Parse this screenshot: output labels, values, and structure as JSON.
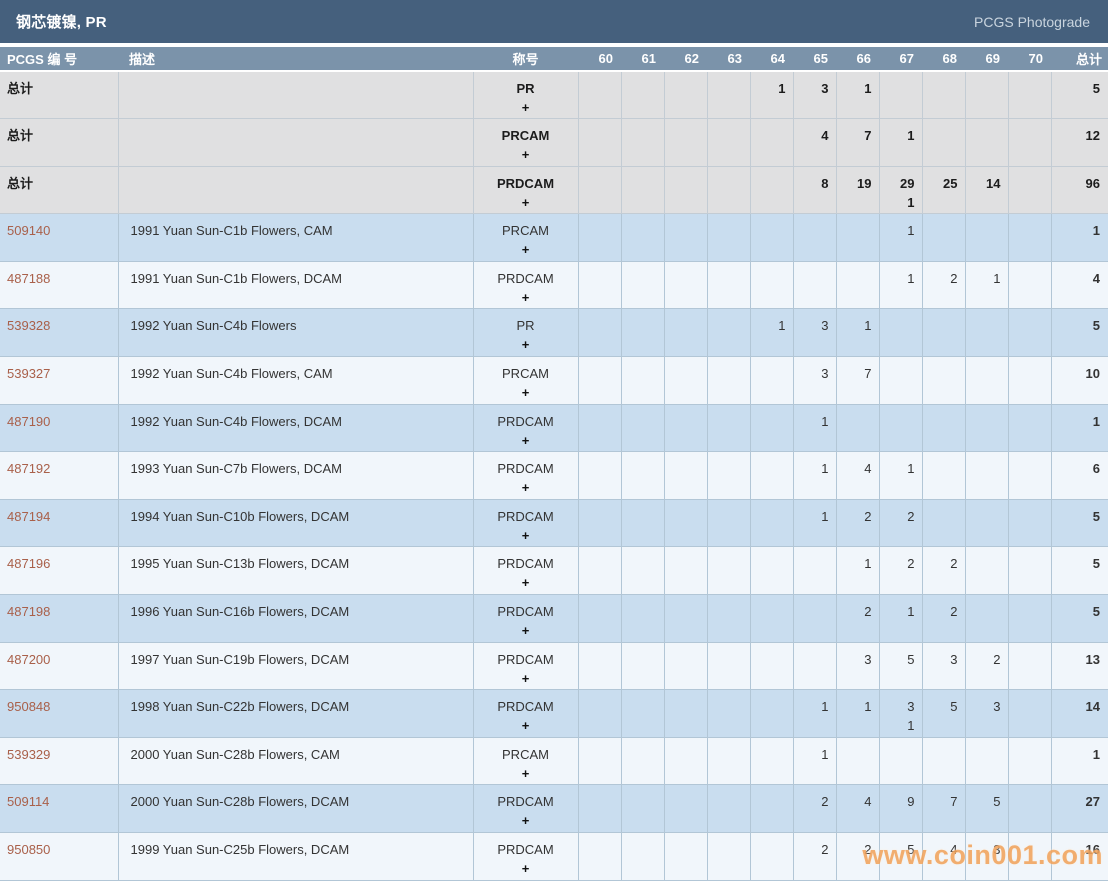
{
  "title": "钢芯镀镍, PR",
  "photograde_link": "PCGS Photograde",
  "watermark": "www.coin001.com",
  "colors": {
    "title_bar": "#45607d",
    "header_row": "#7b93aa",
    "total_row": "#e0e0e1",
    "row_blue": "#c9ddef",
    "row_white": "#f1f6fb",
    "pcgs_link": "#a9604a",
    "watermark": "#f2a35c"
  },
  "table": {
    "headers": {
      "pcgs_no": "PCGS 编 号",
      "description": "描述",
      "designation": "称号",
      "grades": [
        "60",
        "61",
        "62",
        "63",
        "64",
        "65",
        "66",
        "67",
        "68",
        "69",
        "70"
      ],
      "total": "总计"
    },
    "rows": [
      {
        "kind": "total",
        "label": "总计",
        "description": "",
        "designation": "PR",
        "plus": "+",
        "grades": [
          "",
          "",
          "",
          "",
          "1",
          "3",
          "1",
          "",
          "",
          "",
          ""
        ],
        "total": "5"
      },
      {
        "kind": "total",
        "label": "总计",
        "description": "",
        "designation": "PRCAM",
        "plus": "+",
        "grades": [
          "",
          "",
          "",
          "",
          "",
          "4",
          "7",
          "1",
          "",
          "",
          ""
        ],
        "total": "12"
      },
      {
        "kind": "total",
        "label": "总计",
        "description": "",
        "designation": "PRDCAM",
        "plus": "+",
        "grades": [
          "",
          "",
          "",
          "",
          "",
          "8",
          "19",
          [
            "29",
            "1"
          ],
          "25",
          "14",
          ""
        ],
        "total": "96"
      },
      {
        "kind": "data",
        "pcgs_no": "509140",
        "description": "1991 Yuan Sun-C1b Flowers, CAM",
        "designation": "PRCAM",
        "plus": "+",
        "grades": [
          "",
          "",
          "",
          "",
          "",
          "",
          "",
          "1",
          "",
          "",
          ""
        ],
        "total": "1"
      },
      {
        "kind": "data",
        "pcgs_no": "487188",
        "description": "1991 Yuan Sun-C1b Flowers, DCAM",
        "designation": "PRDCAM",
        "plus": "+",
        "grades": [
          "",
          "",
          "",
          "",
          "",
          "",
          "",
          "1",
          "2",
          "1",
          ""
        ],
        "total": "4"
      },
      {
        "kind": "data",
        "pcgs_no": "539328",
        "description": "1992 Yuan Sun-C4b Flowers",
        "designation": "PR",
        "plus": "+",
        "grades": [
          "",
          "",
          "",
          "",
          "1",
          "3",
          "1",
          "",
          "",
          "",
          ""
        ],
        "total": "5"
      },
      {
        "kind": "data",
        "pcgs_no": "539327",
        "description": "1992 Yuan Sun-C4b Flowers, CAM",
        "designation": "PRCAM",
        "plus": "+",
        "grades": [
          "",
          "",
          "",
          "",
          "",
          "3",
          "7",
          "",
          "",
          "",
          ""
        ],
        "total": "10"
      },
      {
        "kind": "data",
        "pcgs_no": "487190",
        "description": "1992 Yuan Sun-C4b Flowers, DCAM",
        "designation": "PRDCAM",
        "plus": "+",
        "grades": [
          "",
          "",
          "",
          "",
          "",
          "1",
          "",
          "",
          "",
          "",
          ""
        ],
        "total": "1"
      },
      {
        "kind": "data",
        "pcgs_no": "487192",
        "description": "1993 Yuan Sun-C7b Flowers, DCAM",
        "designation": "PRDCAM",
        "plus": "+",
        "grades": [
          "",
          "",
          "",
          "",
          "",
          "1",
          "4",
          "1",
          "",
          "",
          ""
        ],
        "total": "6"
      },
      {
        "kind": "data",
        "pcgs_no": "487194",
        "description": "1994 Yuan Sun-C10b Flowers, DCAM",
        "designation": "PRDCAM",
        "plus": "+",
        "grades": [
          "",
          "",
          "",
          "",
          "",
          "1",
          "2",
          "2",
          "",
          "",
          ""
        ],
        "total": "5"
      },
      {
        "kind": "data",
        "pcgs_no": "487196",
        "description": "1995 Yuan Sun-C13b Flowers, DCAM",
        "designation": "PRDCAM",
        "plus": "+",
        "grades": [
          "",
          "",
          "",
          "",
          "",
          "",
          "1",
          "2",
          "2",
          "",
          ""
        ],
        "total": "5"
      },
      {
        "kind": "data",
        "pcgs_no": "487198",
        "description": "1996 Yuan Sun-C16b Flowers, DCAM",
        "designation": "PRDCAM",
        "plus": "+",
        "grades": [
          "",
          "",
          "",
          "",
          "",
          "",
          "2",
          "1",
          "2",
          "",
          ""
        ],
        "total": "5"
      },
      {
        "kind": "data",
        "pcgs_no": "487200",
        "description": "1997 Yuan Sun-C19b Flowers, DCAM",
        "designation": "PRDCAM",
        "plus": "+",
        "grades": [
          "",
          "",
          "",
          "",
          "",
          "",
          "3",
          "5",
          "3",
          "2",
          ""
        ],
        "total": "13"
      },
      {
        "kind": "data",
        "pcgs_no": "950848",
        "description": "1998 Yuan Sun-C22b Flowers, DCAM",
        "designation": "PRDCAM",
        "plus": "+",
        "grades": [
          "",
          "",
          "",
          "",
          "",
          "1",
          "1",
          [
            "3",
            "1"
          ],
          "5",
          "3",
          ""
        ],
        "total": "14"
      },
      {
        "kind": "data",
        "pcgs_no": "539329",
        "description": "2000 Yuan Sun-C28b Flowers, CAM",
        "designation": "PRCAM",
        "plus": "+",
        "grades": [
          "",
          "",
          "",
          "",
          "",
          "1",
          "",
          "",
          "",
          "",
          ""
        ],
        "total": "1"
      },
      {
        "kind": "data",
        "pcgs_no": "509114",
        "description": "2000 Yuan Sun-C28b Flowers, DCAM",
        "designation": "PRDCAM",
        "plus": "+",
        "grades": [
          "",
          "",
          "",
          "",
          "",
          "2",
          "4",
          "9",
          "7",
          "5",
          ""
        ],
        "total": "27"
      },
      {
        "kind": "data",
        "pcgs_no": "950850",
        "description": "1999 Yuan Sun-C25b Flowers, DCAM",
        "designation": "PRDCAM",
        "plus": "+",
        "grades": [
          "",
          "",
          "",
          "",
          "",
          "2",
          "2",
          "5",
          "4",
          "3",
          ""
        ],
        "total": "16"
      }
    ]
  }
}
